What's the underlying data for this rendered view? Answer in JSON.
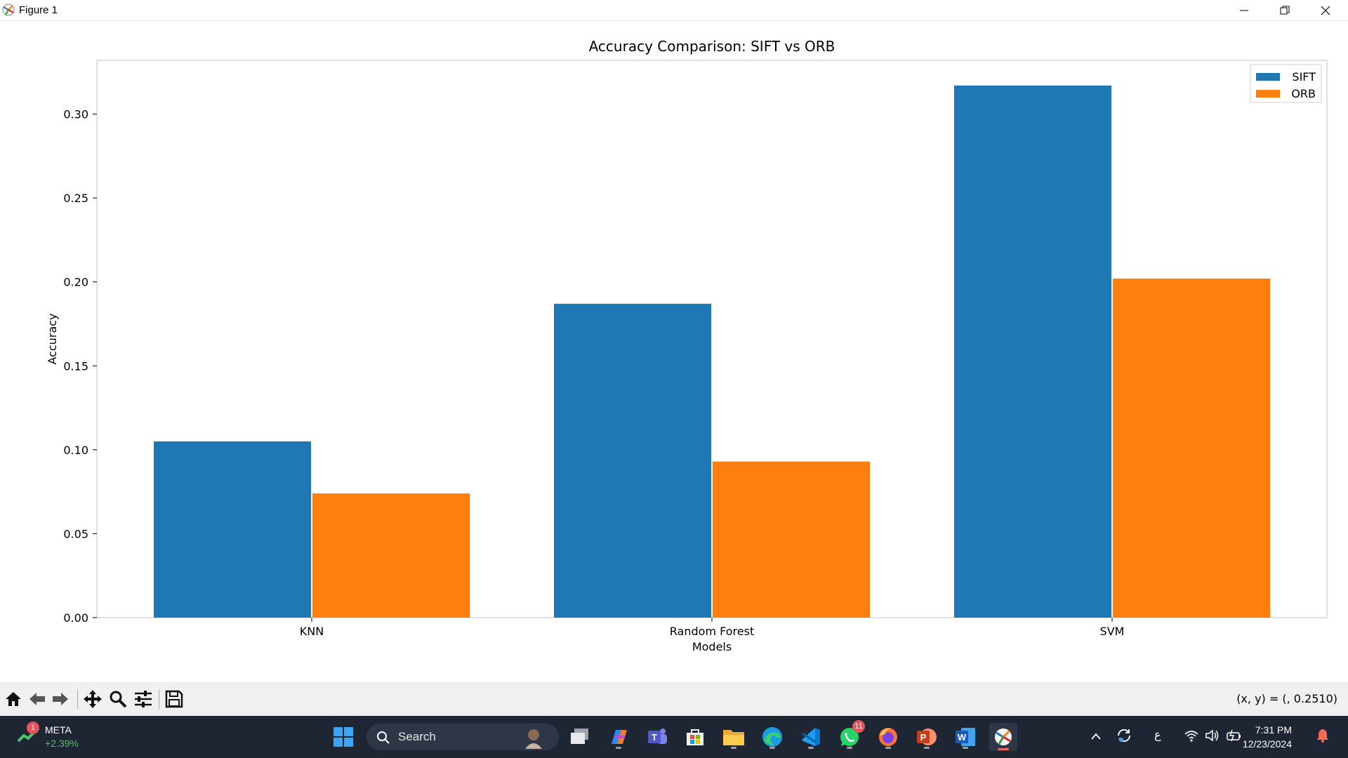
{
  "window": {
    "title": "Figure 1",
    "controls": [
      "minimize-icon",
      "restore-icon",
      "close-icon"
    ]
  },
  "chart_data": {
    "type": "bar",
    "title": "Accuracy Comparison: SIFT vs ORB",
    "xlabel": "Models",
    "ylabel": "Accuracy",
    "categories": [
      "KNN",
      "Random Forest",
      "SVM"
    ],
    "series": [
      {
        "name": "SIFT",
        "color": "#1f77b4",
        "values": [
          0.105,
          0.187,
          0.317
        ]
      },
      {
        "name": "ORB",
        "color": "#ff7f0e",
        "values": [
          0.074,
          0.093,
          0.202
        ]
      }
    ],
    "ylim": [
      0,
      0.332
    ],
    "yticks": [
      "0.00",
      "0.05",
      "0.10",
      "0.15",
      "0.20",
      "0.25",
      "0.30"
    ],
    "ytick_values": [
      0,
      0.05,
      0.1,
      0.15,
      0.2,
      0.25,
      0.3
    ],
    "grid": false,
    "legend": "top-right"
  },
  "toolbar": {
    "tools": [
      "home-icon",
      "back-icon",
      "forward-icon",
      "pan-icon",
      "zoom-icon",
      "configure-subplots-icon",
      "save-icon"
    ],
    "coords": "(x, y) = (, 0.2510)"
  },
  "taskbar": {
    "stock": {
      "name": "META",
      "change": "+2.39%",
      "badge": "1"
    },
    "search_label": "Search",
    "apps": [
      "start-icon",
      "task-view-icon",
      "copilot-icon",
      "teams-icon",
      "store-icon",
      "file-explorer-icon",
      "edge-icon",
      "vscode-icon",
      "whatsapp-icon",
      "firefox-icon",
      "powerpoint-icon",
      "word-icon",
      "matplotlib-icon"
    ],
    "whatsapp_badge": "11",
    "tray_lang": "ع",
    "time": "7:31 PM",
    "date": "12/23/2024"
  }
}
